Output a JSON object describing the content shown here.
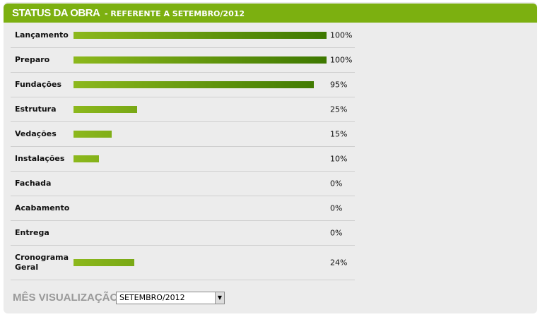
{
  "chart_data": {
    "type": "bar",
    "orientation": "horizontal",
    "title": "STATUS DA OBRA",
    "subtitle": "- REFERENTE A SETEMBRO/2012",
    "categories": [
      "Lançamento",
      "Preparo",
      "Fundações",
      "Estrutura",
      "Vedações",
      "Instalações",
      "Fachada",
      "Acabamento",
      "Entrega",
      "Cronograma Geral"
    ],
    "values": [
      100,
      100,
      95,
      25,
      15,
      10,
      0,
      0,
      0,
      24
    ],
    "value_labels": [
      "100%",
      "100%",
      "95%",
      "25%",
      "15%",
      "10%",
      "0%",
      "0%",
      "0%",
      "24%"
    ],
    "color": [
      "#8cb81c",
      "#3d7800"
    ],
    "xlim": [
      0,
      100
    ],
    "selector_label": "MÊS VISUALIZAÇÃO:",
    "selector_value": "SETEMBRO/2012"
  }
}
